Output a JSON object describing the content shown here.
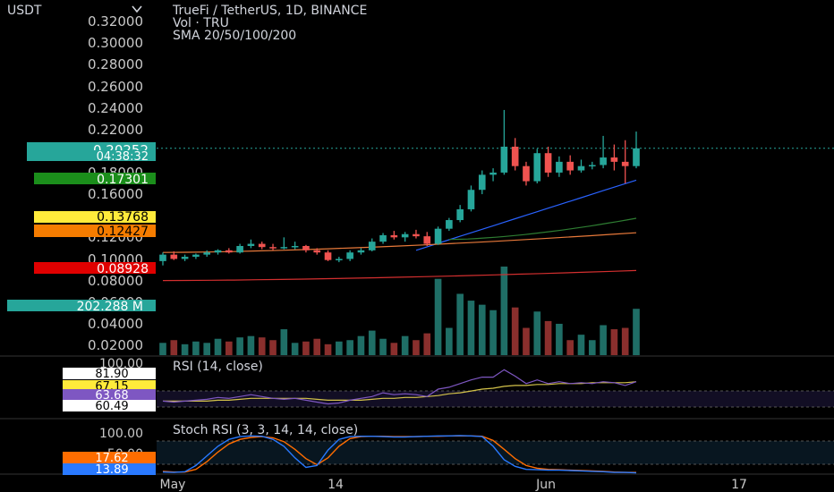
{
  "header": {
    "currency_label": "USDT",
    "title": "TrueFi / TetherUS, 1D, BINANCE",
    "vol_label": "Vol · TRU",
    "sma_label": "SMA 20/50/100/200"
  },
  "price_axis": {
    "ticks": [
      "0.32000",
      "0.30000",
      "0.28000",
      "0.26000",
      "0.24000",
      "0.22000",
      "0.18000",
      "0.16000",
      "0.12000",
      "0.10000",
      "0.08000",
      "0.06000",
      "0.04000",
      "0.02000"
    ],
    "ylim": [
      0.0,
      0.33
    ]
  },
  "badges": {
    "last_price": "0.20252",
    "countdown": "04:38:32",
    "sma20": "0.17301",
    "sma50": "0.13768",
    "sma100": "0.12427",
    "sma200": "0.08928",
    "volume": "202.288 M"
  },
  "rsi": {
    "title": "RSI (14, close)",
    "top_tick": "100.00",
    "values_badges": [
      "81.90",
      "67.15",
      "63.68",
      "60.49"
    ]
  },
  "stoch": {
    "title": "Stoch RSI (3, 3, 14, 14, close)",
    "top_tick": "100.00",
    "mid_tick": "50.00",
    "values_badges": [
      "17.62",
      "13.89"
    ]
  },
  "time_axis": {
    "labels": [
      "May",
      "14",
      "Jun",
      "17"
    ]
  },
  "colors": {
    "up": "#26a69a",
    "down": "#ef5350",
    "sma20": "#2962ff",
    "sma50": "#2e7d32",
    "sma100": "#e8793a",
    "sma200": "#d32f2f",
    "rsi_line": "#7e57c2",
    "rsi_ma": "#d4c34a",
    "stoch_k": "#2979ff",
    "stoch_d": "#ff6d00"
  },
  "chart_data": {
    "type": "candlestick",
    "title": "TrueFi / TetherUS, 1D, BINANCE",
    "interval": "1D",
    "candles": [
      {
        "o": 0.098,
        "h": 0.106,
        "l": 0.094,
        "c": 0.104,
        "v": 9
      },
      {
        "o": 0.104,
        "h": 0.107,
        "l": 0.099,
        "c": 0.1,
        "v": 11
      },
      {
        "o": 0.1,
        "h": 0.104,
        "l": 0.098,
        "c": 0.102,
        "v": 8
      },
      {
        "o": 0.102,
        "h": 0.105,
        "l": 0.1,
        "c": 0.104,
        "v": 10
      },
      {
        "o": 0.104,
        "h": 0.108,
        "l": 0.102,
        "c": 0.106,
        "v": 9
      },
      {
        "o": 0.106,
        "h": 0.109,
        "l": 0.104,
        "c": 0.108,
        "v": 12
      },
      {
        "o": 0.108,
        "h": 0.11,
        "l": 0.105,
        "c": 0.106,
        "v": 10
      },
      {
        "o": 0.106,
        "h": 0.114,
        "l": 0.105,
        "c": 0.112,
        "v": 13
      },
      {
        "o": 0.112,
        "h": 0.118,
        "l": 0.11,
        "c": 0.114,
        "v": 14
      },
      {
        "o": 0.114,
        "h": 0.116,
        "l": 0.109,
        "c": 0.111,
        "v": 13
      },
      {
        "o": 0.111,
        "h": 0.114,
        "l": 0.108,
        "c": 0.11,
        "v": 11
      },
      {
        "o": 0.11,
        "h": 0.12,
        "l": 0.109,
        "c": 0.111,
        "v": 19
      },
      {
        "o": 0.111,
        "h": 0.116,
        "l": 0.109,
        "c": 0.112,
        "v": 9
      },
      {
        "o": 0.112,
        "h": 0.113,
        "l": 0.106,
        "c": 0.108,
        "v": 10
      },
      {
        "o": 0.108,
        "h": 0.11,
        "l": 0.104,
        "c": 0.106,
        "v": 12
      },
      {
        "o": 0.106,
        "h": 0.108,
        "l": 0.098,
        "c": 0.099,
        "v": 8
      },
      {
        "o": 0.099,
        "h": 0.102,
        "l": 0.097,
        "c": 0.1,
        "v": 10
      },
      {
        "o": 0.1,
        "h": 0.108,
        "l": 0.098,
        "c": 0.106,
        "v": 11
      },
      {
        "o": 0.106,
        "h": 0.11,
        "l": 0.104,
        "c": 0.108,
        "v": 14
      },
      {
        "o": 0.108,
        "h": 0.119,
        "l": 0.107,
        "c": 0.116,
        "v": 18
      },
      {
        "o": 0.116,
        "h": 0.124,
        "l": 0.114,
        "c": 0.122,
        "v": 12
      },
      {
        "o": 0.122,
        "h": 0.126,
        "l": 0.118,
        "c": 0.12,
        "v": 9
      },
      {
        "o": 0.12,
        "h": 0.125,
        "l": 0.116,
        "c": 0.123,
        "v": 14
      },
      {
        "o": 0.123,
        "h": 0.127,
        "l": 0.119,
        "c": 0.121,
        "v": 11
      },
      {
        "o": 0.121,
        "h": 0.125,
        "l": 0.112,
        "c": 0.114,
        "v": 16
      },
      {
        "o": 0.114,
        "h": 0.13,
        "l": 0.113,
        "c": 0.128,
        "v": 56
      },
      {
        "o": 0.128,
        "h": 0.138,
        "l": 0.126,
        "c": 0.136,
        "v": 20
      },
      {
        "o": 0.136,
        "h": 0.15,
        "l": 0.134,
        "c": 0.146,
        "v": 45
      },
      {
        "o": 0.146,
        "h": 0.168,
        "l": 0.144,
        "c": 0.164,
        "v": 40
      },
      {
        "o": 0.164,
        "h": 0.182,
        "l": 0.16,
        "c": 0.178,
        "v": 37
      },
      {
        "o": 0.178,
        "h": 0.184,
        "l": 0.172,
        "c": 0.18,
        "v": 33
      },
      {
        "o": 0.18,
        "h": 0.238,
        "l": 0.178,
        "c": 0.204,
        "v": 65
      },
      {
        "o": 0.204,
        "h": 0.212,
        "l": 0.182,
        "c": 0.186,
        "v": 35
      },
      {
        "o": 0.186,
        "h": 0.19,
        "l": 0.168,
        "c": 0.172,
        "v": 20
      },
      {
        "o": 0.172,
        "h": 0.202,
        "l": 0.17,
        "c": 0.198,
        "v": 32
      },
      {
        "o": 0.198,
        "h": 0.204,
        "l": 0.176,
        "c": 0.18,
        "v": 25
      },
      {
        "o": 0.18,
        "h": 0.195,
        "l": 0.176,
        "c": 0.19,
        "v": 23
      },
      {
        "o": 0.19,
        "h": 0.196,
        "l": 0.178,
        "c": 0.182,
        "v": 11
      },
      {
        "o": 0.182,
        "h": 0.192,
        "l": 0.18,
        "c": 0.186,
        "v": 15
      },
      {
        "o": 0.186,
        "h": 0.19,
        "l": 0.183,
        "c": 0.187,
        "v": 11
      },
      {
        "o": 0.187,
        "h": 0.214,
        "l": 0.184,
        "c": 0.194,
        "v": 22
      },
      {
        "o": 0.194,
        "h": 0.206,
        "l": 0.182,
        "c": 0.19,
        "v": 19
      },
      {
        "o": 0.19,
        "h": 0.21,
        "l": 0.17,
        "c": 0.186,
        "v": 20
      },
      {
        "o": 0.186,
        "h": 0.218,
        "l": 0.184,
        "c": 0.2025,
        "v": 34
      }
    ],
    "sma": {
      "sma20": {
        "start_index": 23,
        "y_start": 0.108,
        "y_end": 0.17301
      },
      "sma50": {
        "start_index": 26,
        "y_start": 0.118,
        "y_end": 0.13768
      },
      "sma100": {
        "start_index": 0,
        "y_start": 0.106,
        "y_end": 0.12427
      },
      "sma200": {
        "start_index": 0,
        "y_start": 0.08,
        "y_end": 0.08928
      }
    },
    "rsi": [
      47,
      46,
      47,
      48,
      49,
      51,
      50,
      52,
      54,
      52,
      50,
      49,
      50,
      48,
      46,
      44,
      45,
      48,
      50,
      52,
      56,
      54,
      55,
      54,
      52,
      60,
      62,
      66,
      70,
      73,
      73,
      81,
      74,
      66,
      70,
      66,
      68,
      66,
      67,
      66,
      68,
      67,
      64,
      68
    ],
    "rsi_ma": [
      47,
      47,
      47,
      47,
      47,
      48,
      48,
      49,
      50,
      50,
      50,
      50,
      50,
      50,
      49,
      48,
      48,
      48,
      48,
      49,
      50,
      50,
      51,
      51,
      52,
      53,
      55,
      56,
      58,
      60,
      61,
      63,
      64,
      64,
      65,
      65,
      66,
      66,
      66,
      67,
      67,
      67,
      67,
      68
    ],
    "stoch_k": [
      3,
      2,
      4,
      20,
      45,
      70,
      88,
      95,
      97,
      96,
      88,
      70,
      40,
      15,
      20,
      60,
      88,
      95,
      96,
      96,
      95,
      94,
      94,
      95,
      96,
      97,
      97,
      98,
      97,
      95,
      70,
      35,
      18,
      10,
      9,
      8,
      8,
      7,
      6,
      5,
      4,
      2,
      2,
      1
    ],
    "stoch_d": [
      5,
      3,
      3,
      10,
      30,
      55,
      76,
      88,
      93,
      95,
      92,
      82,
      62,
      38,
      22,
      40,
      70,
      90,
      95,
      96,
      96,
      95,
      95,
      95,
      96,
      96,
      97,
      97,
      97,
      96,
      85,
      62,
      38,
      20,
      13,
      10,
      9,
      8,
      7,
      6,
      5,
      3,
      2,
      2
    ],
    "volume_max_label": "202.288 M",
    "x_labels": [
      "May",
      "14",
      "Jun",
      "17"
    ]
  }
}
